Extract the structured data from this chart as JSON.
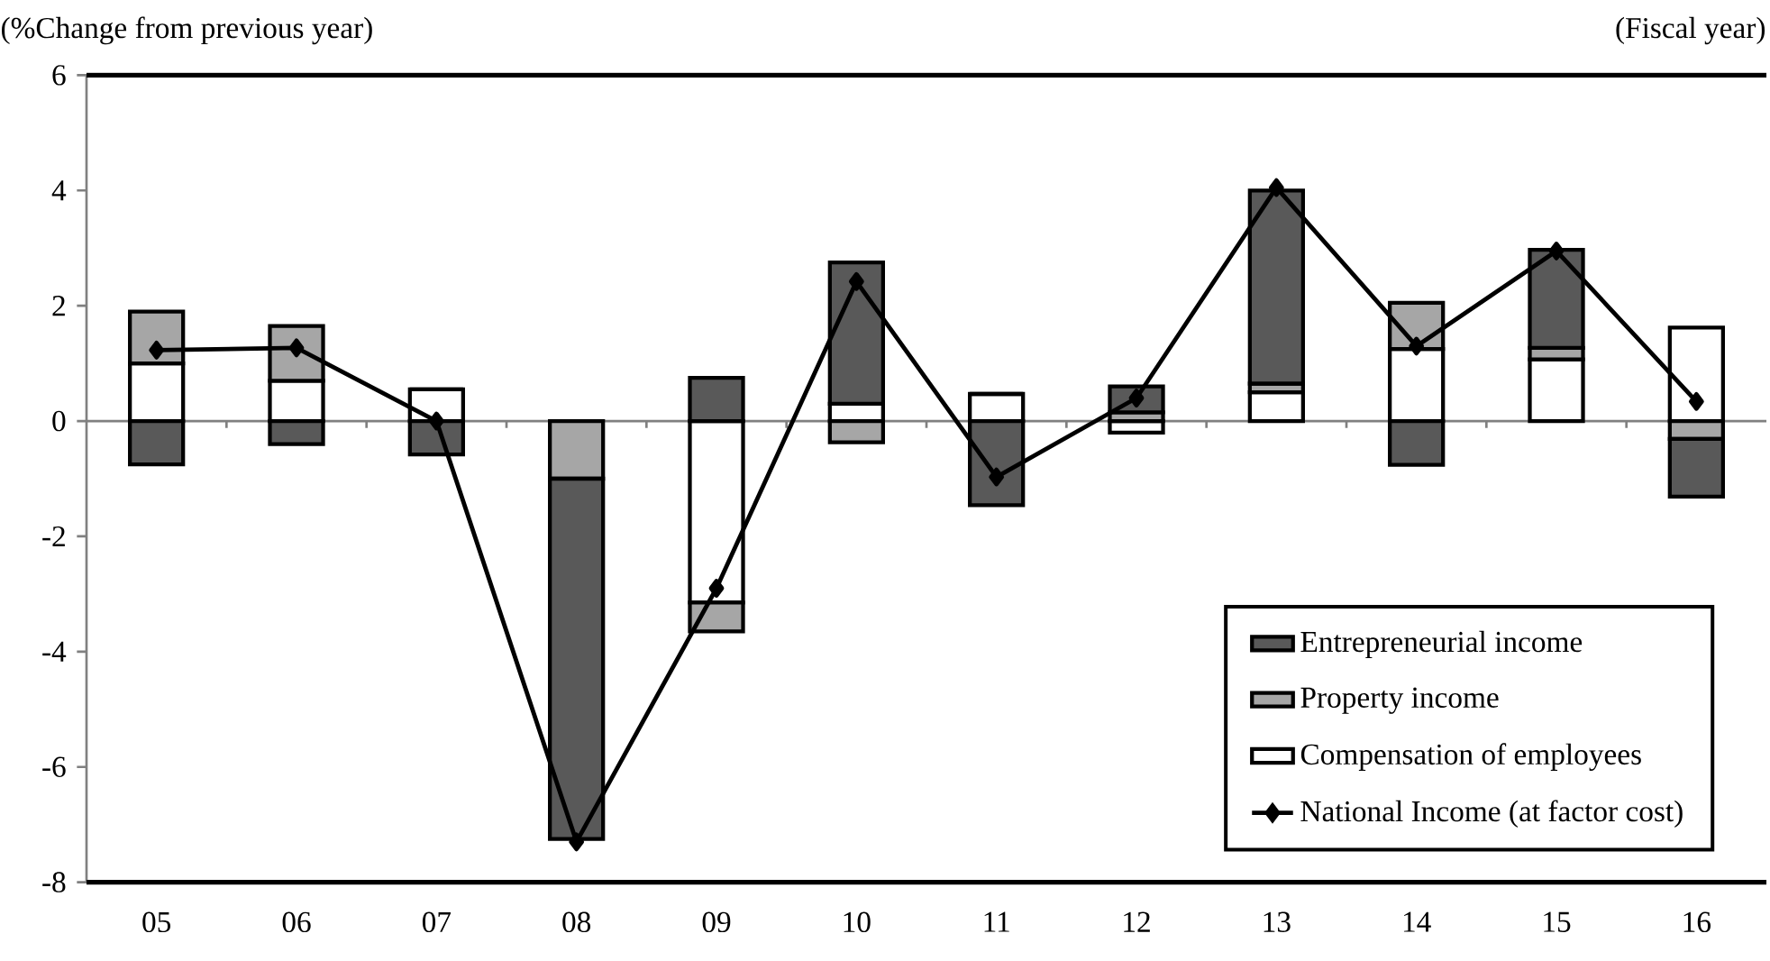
{
  "chart_data": {
    "type": "bar",
    "stacked": true,
    "ylabel": "(%Change from previous year)",
    "xlabel": "(Fiscal year)",
    "categories": [
      "05",
      "06",
      "07",
      "08",
      "09",
      "10",
      "11",
      "12",
      "13",
      "14",
      "15",
      "16"
    ],
    "ylim": [
      -8,
      6
    ],
    "yticks": [
      -8,
      -6,
      -4,
      -2,
      0,
      2,
      4,
      6
    ],
    "legend": "bottom right",
    "marker": "diamond",
    "series": [
      {
        "name": "Compensation of employees",
        "color": "#ffffff",
        "values": [
          1.0,
          0.7,
          0.55,
          0,
          -3.15,
          0.3,
          0.47,
          -0.2,
          0.5,
          1.25,
          1.07,
          1.62
        ]
      },
      {
        "name": "Property income",
        "color": "#a6a6a6",
        "values": [
          0.9,
          0.95,
          0,
          -1.0,
          -0.5,
          -0.37,
          0,
          0.15,
          0.15,
          0.8,
          0.2,
          -0.31
        ]
      },
      {
        "name": "Entrepreneurial income",
        "color": "#595959",
        "values": [
          -0.75,
          -0.4,
          -0.58,
          -6.25,
          0.75,
          2.45,
          -1.46,
          0.45,
          3.35,
          -0.76,
          1.7,
          -1.0
        ]
      },
      {
        "name": "National Income (at factor cost)",
        "type": "line",
        "color": "#000000",
        "values": [
          1.23,
          1.27,
          0.0,
          -7.3,
          -2.9,
          2.42,
          -0.97,
          0.4,
          4.05,
          1.3,
          2.95,
          0.34
        ]
      }
    ]
  }
}
